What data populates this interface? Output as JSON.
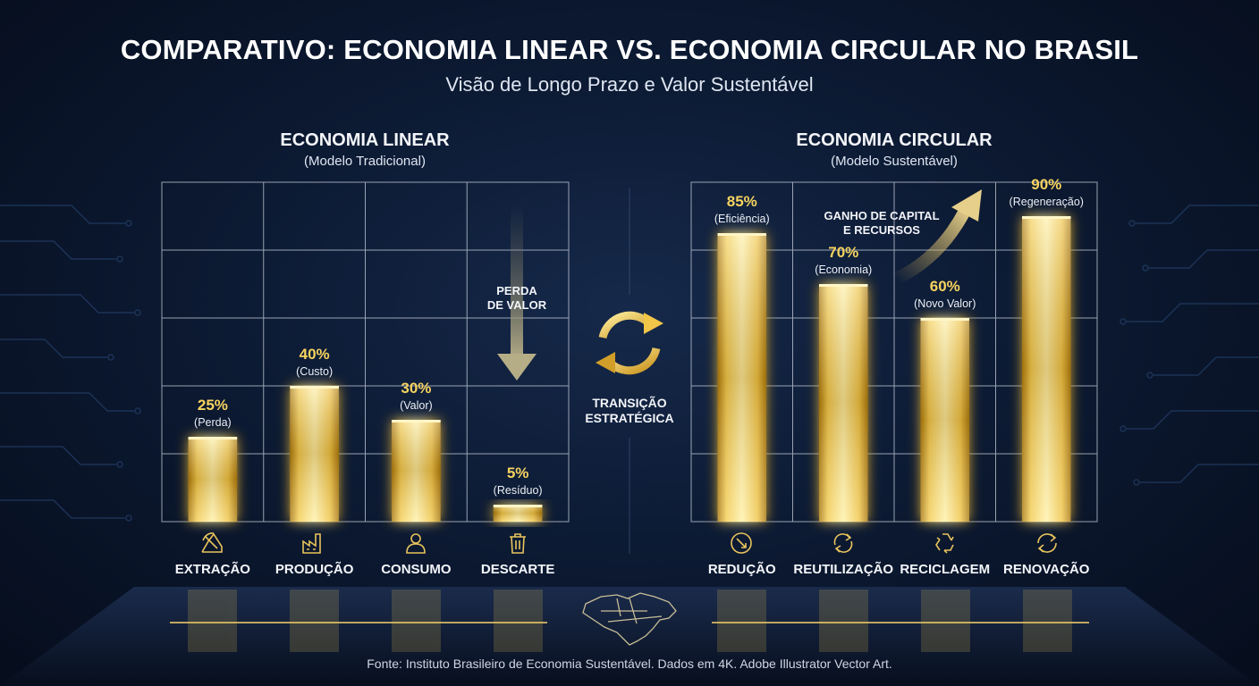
{
  "header": {
    "title": "COMPARATIVO: ECONOMIA LINEAR VS. ECONOMIA CIRCULAR NO BRASIL",
    "subtitle": "Visão de Longo Prazo e Valor Sustentável"
  },
  "center": {
    "transition_line1": "TRANSIÇÃO",
    "transition_line2": "ESTRATÉGICA"
  },
  "footer": {
    "source": "Fonte: Instituto Brasileiro de Economia Sustentável. Dados em 4K. Adobe Illustrator Vector Art."
  },
  "colors": {
    "background": "#0c1a33",
    "gold": "#f5cf52",
    "gold_dark": "#b8860b",
    "grid": "#c8cfdc"
  },
  "chart_data": [
    {
      "type": "bar",
      "title": "ECONOMIA LINEAR",
      "subtitle": "(Modelo Tradicional)",
      "categories": [
        "EXTRAÇÃO",
        "PRODUÇÃO",
        "CONSUMO",
        "DESCARTE"
      ],
      "category_icons": [
        "mining-icon",
        "factory-icon",
        "person-icon",
        "trash-icon"
      ],
      "values": [
        25,
        40,
        30,
        5
      ],
      "value_labels": [
        "25%",
        "40%",
        "30%",
        "5%"
      ],
      "annotations": [
        "(Perda)",
        "(Custo)",
        "(Valor)",
        "(Resíduo)"
      ],
      "callout": {
        "line1": "PERDA",
        "line2": "DE VALOR",
        "arrow": "down"
      },
      "ylim": [
        0,
        100
      ],
      "grid": true
    },
    {
      "type": "bar",
      "title": "ECONOMIA CIRCULAR",
      "subtitle": "(Modelo Sustentável)",
      "categories": [
        "REDUÇÃO",
        "REUTILIZAÇÃO",
        "RECICLAGEM",
        "RENOVAÇÃO"
      ],
      "category_icons": [
        "reduce-icon",
        "reuse-icon",
        "recycle-icon",
        "renew-icon"
      ],
      "values": [
        85,
        70,
        60,
        90
      ],
      "value_labels": [
        "85%",
        "70%",
        "60%",
        "90%"
      ],
      "annotations": [
        "(Eficiência)",
        "(Economia)",
        "(Novo Valor)",
        "(Regeneração)"
      ],
      "callout": {
        "line1": "GANHO DE CAPITAL",
        "line2": "E RECURSOS",
        "arrow": "up"
      },
      "ylim": [
        0,
        100
      ],
      "grid": true
    }
  ]
}
